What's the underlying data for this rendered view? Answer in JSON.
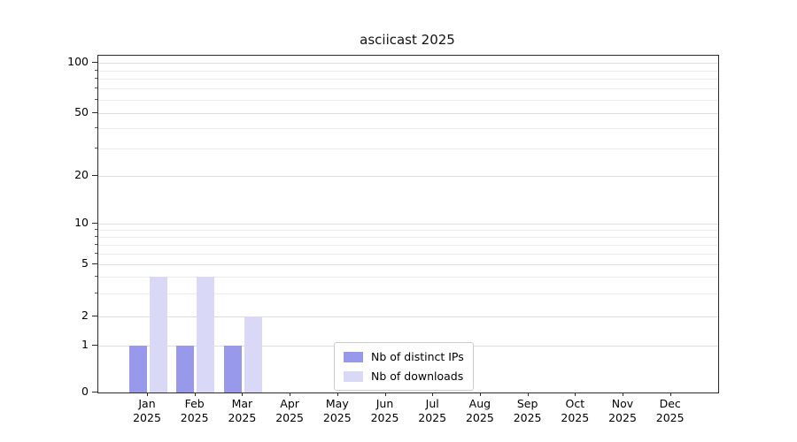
{
  "chart_data": {
    "type": "bar",
    "title": "asciicast 2025",
    "categories": [
      "Jan",
      "Feb",
      "Mar",
      "Apr",
      "May",
      "Jun",
      "Jul",
      "Aug",
      "Sep",
      "Oct",
      "Nov",
      "Dec"
    ],
    "year_label": "2025",
    "series": [
      {
        "name": "Nb of distinct IPs",
        "color": "#9999ec",
        "values": [
          1,
          1,
          1,
          0,
          0,
          0,
          0,
          0,
          0,
          0,
          0,
          0
        ]
      },
      {
        "name": "Nb of downloads",
        "color": "#d9d9f7",
        "values": [
          4,
          4,
          2,
          0,
          0,
          0,
          0,
          0,
          0,
          0,
          0,
          0
        ]
      }
    ],
    "yticks": [
      0,
      1,
      2,
      5,
      10,
      20,
      50,
      100
    ],
    "ylim": [
      0,
      100
    ],
    "scale": "symlog",
    "grid": "horizontal",
    "legend_position": "bottom-center"
  }
}
